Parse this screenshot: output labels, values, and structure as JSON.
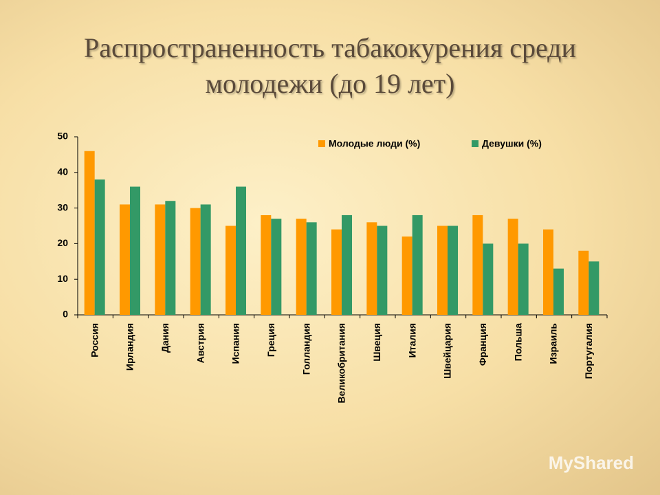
{
  "chart_data": {
    "type": "bar",
    "title": "Распространенность табакокурения среди молодежи (до 19 лет)",
    "categories": [
      "Россия",
      "Ирландия",
      "Дания",
      "Австрия",
      "Испания",
      "Греция",
      "Голландия",
      "Великобритания",
      "Швеция",
      "Италия",
      "Швейцария",
      "Франция",
      "Польша",
      "Израиль",
      "Португалия"
    ],
    "series": [
      {
        "name": "Молодые люди (%)",
        "color": "#ff9900",
        "values": [
          46,
          31,
          31,
          30,
          25,
          28,
          27,
          24,
          26,
          22,
          25,
          28,
          27,
          24,
          18
        ]
      },
      {
        "name": "Девушки (%)",
        "color": "#339966",
        "values": [
          38,
          36,
          32,
          31,
          36,
          27,
          26,
          28,
          25,
          28,
          25,
          20,
          20,
          13,
          15
        ]
      }
    ],
    "ylim": [
      0,
      50
    ],
    "yticks": [
      0,
      10,
      20,
      30,
      40,
      50
    ],
    "grid": false,
    "legend": "top-right"
  },
  "watermark": "MyShared"
}
